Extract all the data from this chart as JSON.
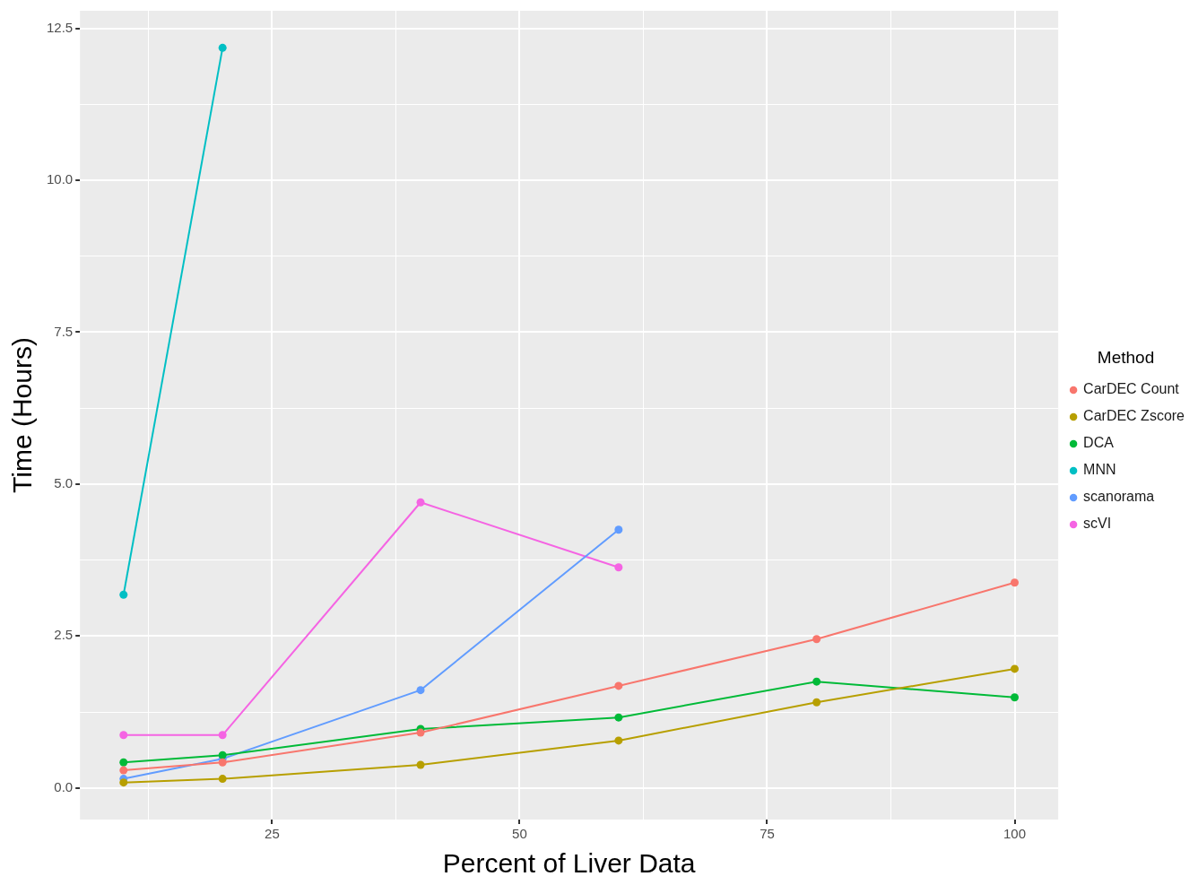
{
  "chart_data": {
    "type": "line",
    "xlabel": "Percent of Liver Data",
    "ylabel": "Time (Hours)",
    "legend_title": "Method",
    "legend": "right",
    "grid": true,
    "marker": "circle",
    "line_style": "solid",
    "xlim": [
      5.6,
      104.4
    ],
    "ylim": [
      -0.52,
      12.79
    ],
    "xticks": [
      {
        "value": 12.5,
        "label": null
      },
      25,
      {
        "value": 37.5,
        "label": null
      },
      50,
      {
        "value": 62.5,
        "label": null
      },
      75,
      {
        "value": 87.5,
        "label": null
      },
      100
    ],
    "yticks": [
      {
        "value": 0,
        "label": "0.0"
      },
      {
        "value": 1.25,
        "label": null
      },
      2.5,
      {
        "value": 3.75,
        "label": null
      },
      {
        "value": 5,
        "label": "5.0"
      },
      {
        "value": 6.25,
        "label": null
      },
      7.5,
      {
        "value": 8.75,
        "label": null
      },
      {
        "value": 10,
        "label": "10.0"
      },
      {
        "value": 11.25,
        "label": null
      },
      12.5
    ],
    "series": [
      {
        "name": "CarDEC Count",
        "color": "#f8766d",
        "x": [
          10,
          20,
          40,
          60,
          80,
          100
        ],
        "values": [
          0.29,
          0.42,
          0.91,
          1.68,
          2.45,
          3.38
        ]
      },
      {
        "name": "CarDEC Zscore",
        "color": "#b79f00",
        "x": [
          10,
          20,
          40,
          60,
          80,
          100
        ],
        "values": [
          0.09,
          0.15,
          0.38,
          0.78,
          1.41,
          1.96
        ]
      },
      {
        "name": "DCA",
        "color": "#00ba38",
        "x": [
          10,
          20,
          40,
          60,
          80,
          100
        ],
        "values": [
          0.42,
          0.54,
          0.97,
          1.16,
          1.75,
          1.49
        ]
      },
      {
        "name": "MNN",
        "color": "#00bfc4",
        "x": [
          10,
          20
        ],
        "values": [
          3.18,
          12.18
        ]
      },
      {
        "name": "scanorama",
        "color": "#619cff",
        "x": [
          10,
          20,
          40,
          60
        ],
        "values": [
          0.15,
          0.48,
          1.61,
          4.25
        ]
      },
      {
        "name": "scVI",
        "color": "#f564e3",
        "x": [
          10,
          20,
          40,
          60
        ],
        "values": [
          0.87,
          0.87,
          4.7,
          3.63
        ]
      }
    ]
  }
}
